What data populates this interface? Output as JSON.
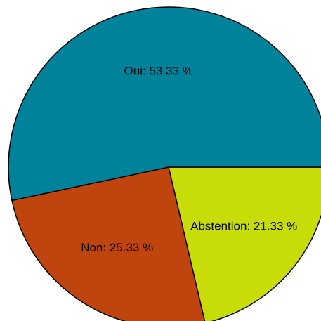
{
  "chart_data": {
    "type": "pie",
    "values": [
      21.33,
      25.33,
      53.33
    ],
    "value_labels": [
      "Abstention: 21.33 %",
      "Non: 25.33 %",
      "Oui: 53.33 %"
    ],
    "colors": [
      "#c8dc0a",
      "#c0440e",
      "#00829b"
    ]
  }
}
